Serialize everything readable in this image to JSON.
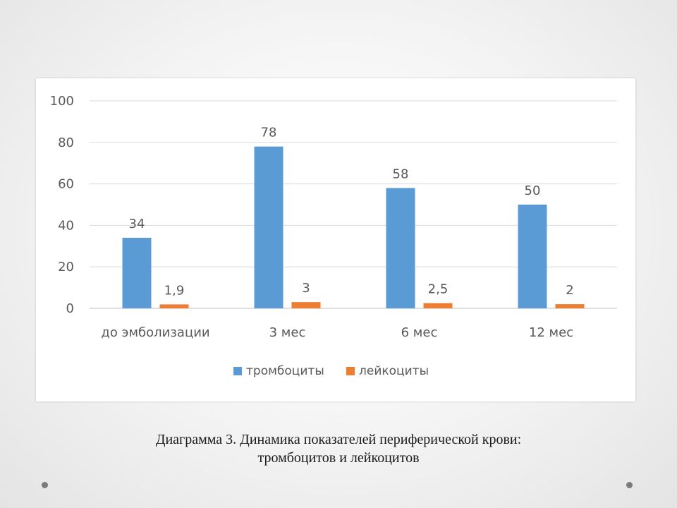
{
  "caption": {
    "line1": "Диаграмма 3. Динамика показателей периферической крови:",
    "line2": "тромбоцитов и лейкоцитов"
  },
  "chart_data": {
    "type": "bar",
    "categories": [
      "до эмболизации",
      "3 мес",
      "6 мес",
      "12 мес"
    ],
    "series": [
      {
        "name": "тромбоциты",
        "color": "#5B9BD5",
        "values": [
          34,
          78,
          58,
          50
        ],
        "labels": [
          "34",
          "78",
          "58",
          "50"
        ]
      },
      {
        "name": "лейкоциты",
        "color": "#ED7D31",
        "values": [
          1.9,
          3,
          2.5,
          2
        ],
        "labels": [
          "1,9",
          "3",
          "2,5",
          "2"
        ]
      }
    ],
    "ylim": [
      0,
      100
    ],
    "yticks": [
      0,
      20,
      40,
      60,
      80,
      100
    ],
    "grid": true,
    "legend": "bottom"
  }
}
